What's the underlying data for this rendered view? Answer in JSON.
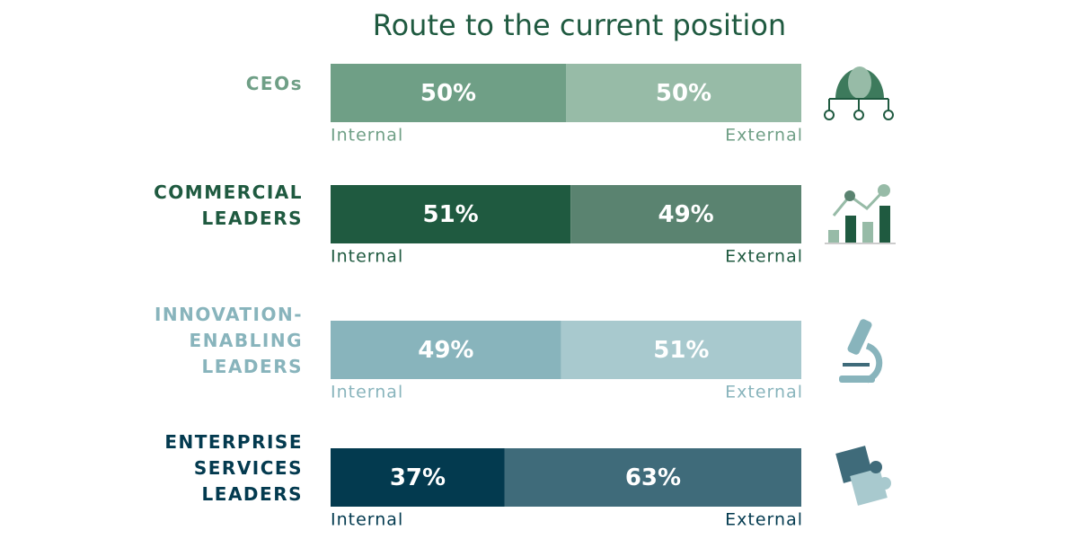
{
  "chart_data": {
    "type": "stacked-bar",
    "orientation": "horizontal",
    "title": "Route to the current position",
    "categories": [
      "CEOs",
      "COMMERCIAL LEADERS",
      "INNOVATION-ENABLING LEADERS",
      "ENTERPRISE SERVICES LEADERS"
    ],
    "category_colors": [
      "#6f9f86",
      "#1f5a40",
      "#88b4bc",
      "#033a4f"
    ],
    "xlim": [
      0,
      100
    ],
    "series": [
      {
        "name": "Internal",
        "colors": [
          "#6f9f86",
          "#1f5a40",
          "#88b4bc",
          "#033a4f"
        ],
        "values": [
          50,
          51,
          49,
          37
        ],
        "value_labels": [
          "50%",
          "51%",
          "49%",
          "37%"
        ]
      },
      {
        "name": "External",
        "colors": [
          "#97bba7",
          "#5a8370",
          "#a8c9ce",
          "#3f6b7a"
        ],
        "values": [
          50,
          49,
          51,
          63
        ],
        "value_labels": [
          "50%",
          "49%",
          "51%",
          "63%"
        ]
      }
    ]
  }
}
